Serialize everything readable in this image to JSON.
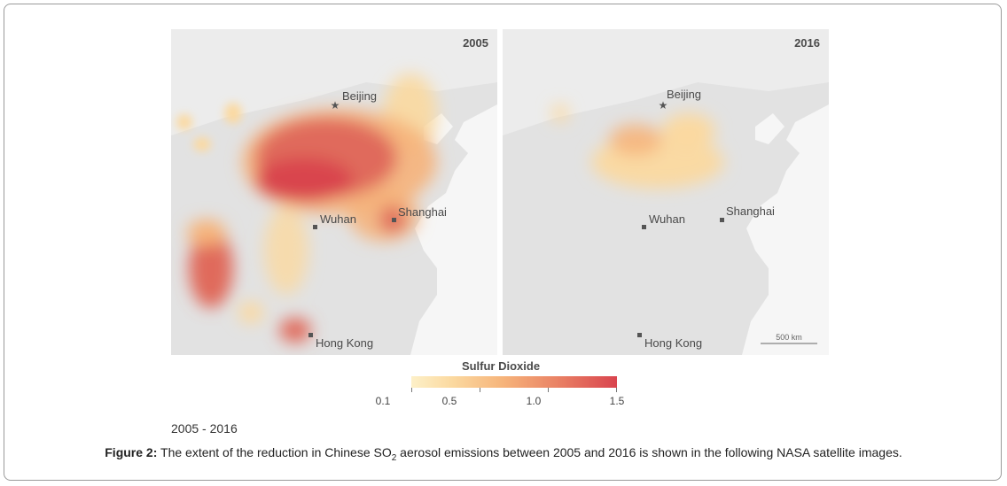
{
  "maps": [
    {
      "year": "2005",
      "labels": {
        "beijing": "Beijing",
        "wuhan": "Wuhan",
        "shanghai": "Shanghai",
        "hongkong": "Hong Kong"
      }
    },
    {
      "year": "2016",
      "labels": {
        "beijing": "Beijing",
        "wuhan": "Wuhan",
        "shanghai": "Shanghai",
        "hongkong": "Hong Kong"
      },
      "scale_bar": "500 km"
    }
  ],
  "legend": {
    "title": "Sulfur Dioxide",
    "ticks": [
      "0.1",
      "0.5",
      "1.0",
      "1.5"
    ],
    "colors": [
      "#fdf0c8",
      "#fbd9a0",
      "#f6b37a",
      "#ea8466",
      "#d9444e"
    ]
  },
  "subcaption": "2005 - 2016",
  "caption": {
    "label": "Figure 2:",
    "text_before": "The extent of the reduction in Chinese SO",
    "subscript": "2",
    "text_after": " aerosol emissions between 2005 and 2016 is shown in the following NASA satellite images."
  }
}
